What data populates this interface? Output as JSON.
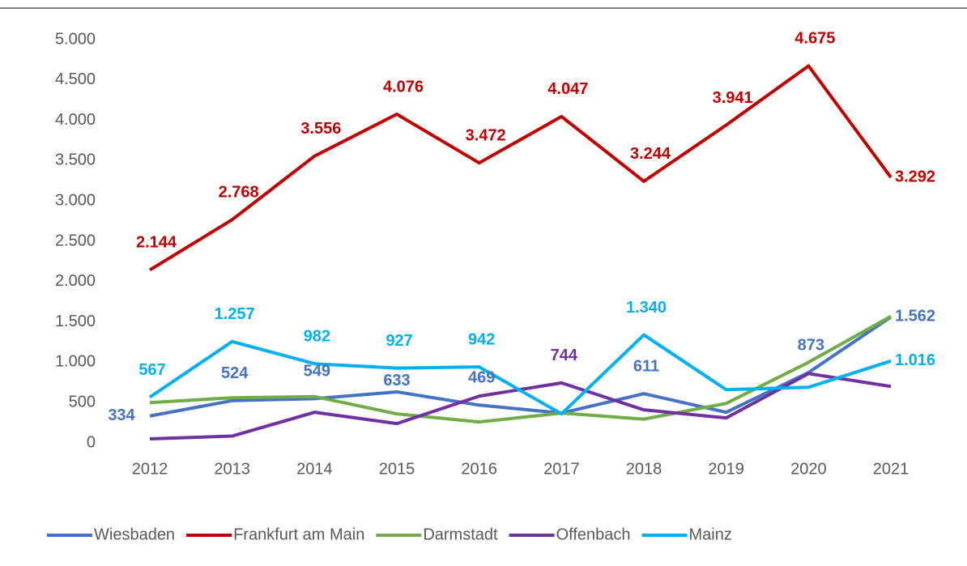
{
  "chart_data": {
    "type": "line",
    "categories": [
      "2012",
      "2013",
      "2014",
      "2015",
      "2016",
      "2017",
      "2018",
      "2019",
      "2020",
      "2021"
    ],
    "ylim": [
      0,
      5000
    ],
    "yticks": [
      0,
      500,
      {
        "value": 1000,
        "label": "1.000"
      },
      {
        "value": 1500,
        "label": "1.500"
      },
      {
        "value": 2000,
        "label": "2.000"
      },
      {
        "value": 2500,
        "label": "2.500"
      },
      {
        "value": 3000,
        "label": "3.000"
      },
      {
        "value": 3500,
        "label": "3.500"
      },
      {
        "value": 4000,
        "label": "4.000"
      },
      {
        "value": 4500,
        "label": "4.500"
      },
      {
        "value": 5000,
        "label": "5.000"
      }
    ],
    "legend": "bottom",
    "series": [
      {
        "name": "Wiesbaden",
        "color": "#4472c4",
        "values": [
          334,
          524,
          549,
          633,
          469,
          370,
          611,
          380,
          873,
          1562
        ],
        "value_labels": [
          "334",
          "524",
          "549",
          "633",
          "469",
          null,
          "611",
          null,
          "873",
          "1.562"
        ]
      },
      {
        "name": "Frankfurt am Main",
        "color": "#c00000",
        "values": [
          2144,
          2768,
          3556,
          4076,
          3472,
          4047,
          3244,
          3941,
          4675,
          3292
        ],
        "value_labels": [
          "2.144",
          "2.768",
          "3.556",
          "4.076",
          "3.472",
          "4.047",
          "3.244",
          "3.941",
          "4.675",
          "3.292"
        ]
      },
      {
        "name": "Darmstadt",
        "color": "#70ad47",
        "values": [
          500,
          560,
          575,
          360,
          260,
          370,
          295,
          490,
          1000,
          1570
        ],
        "value_labels": [
          null,
          null,
          null,
          null,
          null,
          null,
          null,
          null,
          null,
          null
        ]
      },
      {
        "name": "Offenbach",
        "color": "#7030a0",
        "values": [
          50,
          85,
          380,
          240,
          580,
          744,
          410,
          310,
          860,
          700
        ],
        "value_labels": [
          null,
          null,
          null,
          null,
          null,
          "744",
          null,
          null,
          null,
          null
        ]
      },
      {
        "name": "Mainz",
        "color": "#00b0f0",
        "values": [
          567,
          1257,
          982,
          927,
          942,
          360,
          1340,
          660,
          690,
          1016
        ],
        "value_labels": [
          "567",
          "1.257",
          "982",
          "927",
          "942",
          null,
          "1.340",
          null,
          null,
          "1.016"
        ]
      }
    ]
  }
}
